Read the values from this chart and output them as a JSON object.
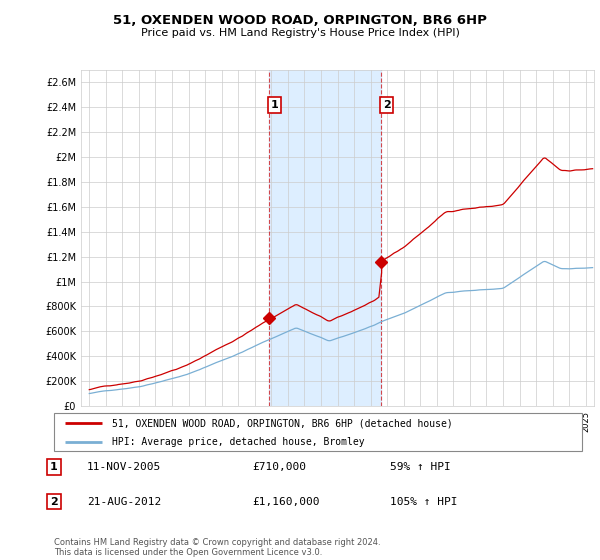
{
  "title": "51, OXENDEN WOOD ROAD, ORPINGTON, BR6 6HP",
  "subtitle": "Price paid vs. HM Land Registry's House Price Index (HPI)",
  "legend_line1": "51, OXENDEN WOOD ROAD, ORPINGTON, BR6 6HP (detached house)",
  "legend_line2": "HPI: Average price, detached house, Bromley",
  "sale1_date": "11-NOV-2005",
  "sale1_price": "£710,000",
  "sale1_hpi": "59% ↑ HPI",
  "sale2_date": "21-AUG-2012",
  "sale2_price": "£1,160,000",
  "sale2_hpi": "105% ↑ HPI",
  "footer": "Contains HM Land Registry data © Crown copyright and database right 2024.\nThis data is licensed under the Open Government Licence v3.0.",
  "property_color": "#cc0000",
  "hpi_color": "#7aafd4",
  "highlight_bg": "#ddeeff",
  "sale1_year": 2005.87,
  "sale2_year": 2012.64,
  "ylim_min": 0,
  "ylim_max": 2700000,
  "yticks": [
    0,
    200000,
    400000,
    600000,
    800000,
    1000000,
    1200000,
    1400000,
    1600000,
    1800000,
    2000000,
    2200000,
    2400000,
    2600000
  ],
  "xmin": 1994.5,
  "xmax": 2025.5
}
